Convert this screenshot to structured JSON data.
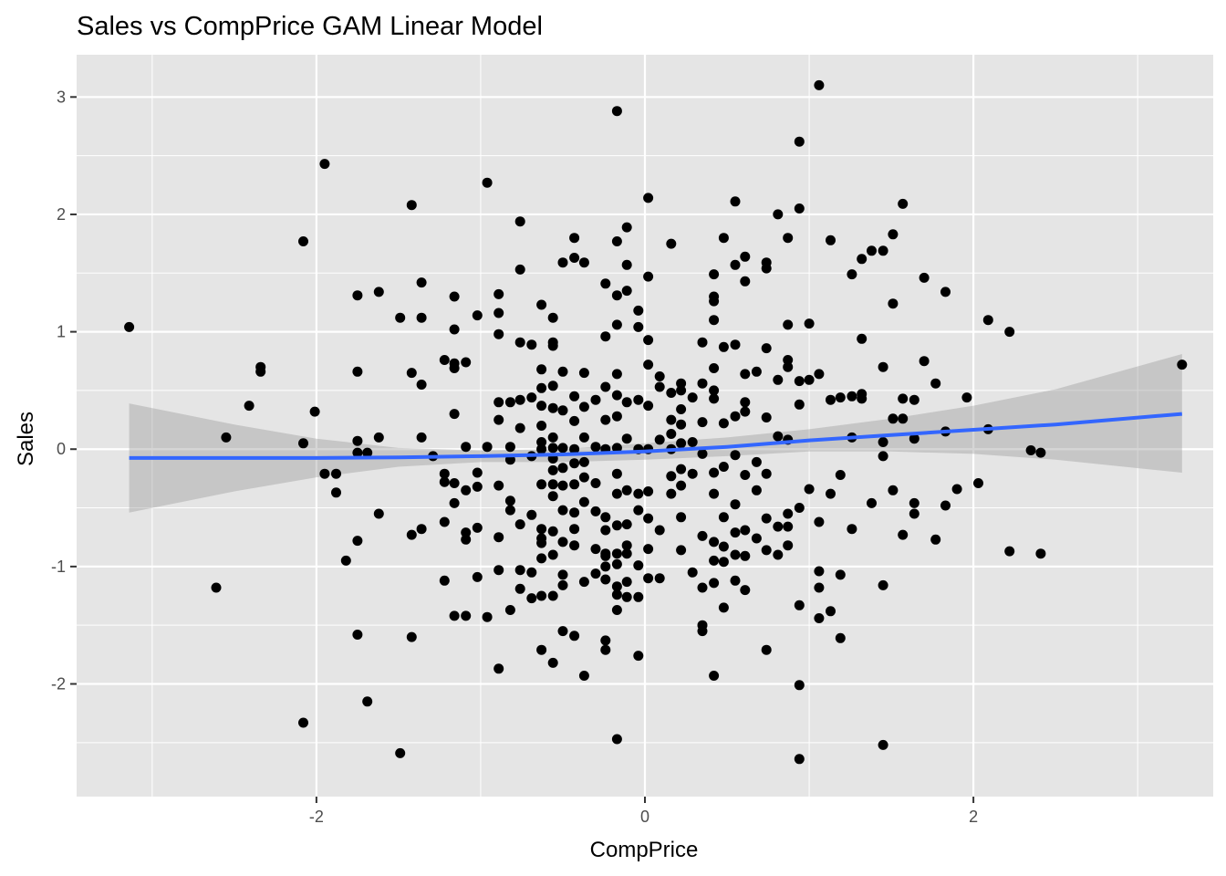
{
  "chart_data": {
    "type": "scatter",
    "title": "Sales vs CompPrice GAM Linear Model",
    "xlabel": "CompPrice",
    "ylabel": "Sales",
    "xlim": [
      -3.46,
      3.46
    ],
    "ylim": [
      -2.96,
      3.36
    ],
    "x_ticks": [
      -2,
      0,
      2
    ],
    "x_tick_labels": [
      "-2",
      "0",
      "2"
    ],
    "y_ticks": [
      -2,
      -1,
      0,
      1,
      2,
      3
    ],
    "y_tick_labels": [
      "-2",
      "-1",
      "0",
      "1",
      "2",
      "3"
    ],
    "grid": true,
    "legend": "none",
    "colors": {
      "panel_background": "#e5e5e5",
      "grid": "#ffffff",
      "points": "#000000",
      "fit_line": "#3366ff",
      "confidence_band": "#999999"
    },
    "points": [
      [
        -3.14,
        1.04
      ],
      [
        -2.55,
        0.1
      ],
      [
        -2.61,
        -1.18
      ],
      [
        -2.41,
        0.37
      ],
      [
        -2.34,
        0.7
      ],
      [
        -2.34,
        0.66
      ],
      [
        -2.08,
        1.77
      ],
      [
        -2.08,
        0.05
      ],
      [
        -2.08,
        -2.33
      ],
      [
        -2.01,
        0.32
      ],
      [
        -1.95,
        2.43
      ],
      [
        -1.95,
        -0.21
      ],
      [
        -1.88,
        -0.21
      ],
      [
        -1.88,
        -0.37
      ],
      [
        -1.82,
        -0.95
      ],
      [
        -1.75,
        1.31
      ],
      [
        -1.75,
        0.66
      ],
      [
        -1.75,
        0.07
      ],
      [
        -1.75,
        -0.03
      ],
      [
        -1.75,
        -0.78
      ],
      [
        -1.75,
        -1.58
      ],
      [
        -1.69,
        -0.03
      ],
      [
        -1.69,
        -2.15
      ],
      [
        -1.62,
        1.34
      ],
      [
        -1.62,
        0.1
      ],
      [
        -1.62,
        -0.55
      ],
      [
        -1.49,
        1.12
      ],
      [
        -1.49,
        -2.59
      ],
      [
        -1.42,
        2.08
      ],
      [
        -1.42,
        0.65
      ],
      [
        -1.42,
        -0.73
      ],
      [
        -1.42,
        -1.6
      ],
      [
        -1.36,
        1.42
      ],
      [
        -1.36,
        1.12
      ],
      [
        -1.36,
        0.55
      ],
      [
        -1.36,
        0.1
      ],
      [
        -1.36,
        -0.68
      ],
      [
        -1.29,
        -0.06
      ],
      [
        -1.22,
        0.76
      ],
      [
        -1.22,
        -0.21
      ],
      [
        -1.22,
        -0.28
      ],
      [
        -1.22,
        -0.62
      ],
      [
        -1.22,
        -1.12
      ],
      [
        -1.16,
        1.3
      ],
      [
        -1.16,
        1.02
      ],
      [
        -1.16,
        0.73
      ],
      [
        -1.16,
        0.69
      ],
      [
        -1.16,
        0.3
      ],
      [
        -1.16,
        -0.29
      ],
      [
        -1.16,
        -0.46
      ],
      [
        -1.16,
        -1.42
      ],
      [
        -1.09,
        0.74
      ],
      [
        -1.09,
        0.02
      ],
      [
        -1.09,
        -0.35
      ],
      [
        -1.09,
        -0.71
      ],
      [
        -1.09,
        -0.77
      ],
      [
        -1.09,
        -1.42
      ],
      [
        -1.02,
        1.14
      ],
      [
        -1.02,
        -0.2
      ],
      [
        -1.02,
        -0.32
      ],
      [
        -1.02,
        -0.67
      ],
      [
        -1.02,
        -1.09
      ],
      [
        -0.96,
        2.27
      ],
      [
        -0.96,
        0.02
      ],
      [
        -0.96,
        -1.43
      ],
      [
        -0.89,
        1.32
      ],
      [
        -0.89,
        1.16
      ],
      [
        -0.89,
        0.98
      ],
      [
        -0.89,
        0.4
      ],
      [
        -0.89,
        0.25
      ],
      [
        -0.89,
        -0.31
      ],
      [
        -0.89,
        -0.75
      ],
      [
        -0.89,
        -1.03
      ],
      [
        -0.89,
        -1.87
      ],
      [
        -0.82,
        0.4
      ],
      [
        -0.82,
        0.02
      ],
      [
        -0.82,
        -0.09
      ],
      [
        -0.82,
        -0.44
      ],
      [
        -0.82,
        -0.52
      ],
      [
        -0.82,
        -1.37
      ],
      [
        -0.76,
        1.94
      ],
      [
        -0.76,
        1.53
      ],
      [
        -0.76,
        0.91
      ],
      [
        -0.76,
        0.42
      ],
      [
        -0.76,
        0.18
      ],
      [
        -0.76,
        -0.64
      ],
      [
        -0.76,
        -1.03
      ],
      [
        -0.76,
        -1.19
      ],
      [
        -0.69,
        0.89
      ],
      [
        -0.69,
        0.44
      ],
      [
        -0.69,
        -0.06
      ],
      [
        -0.69,
        -0.56
      ],
      [
        -0.69,
        -1.05
      ],
      [
        -0.69,
        -1.27
      ],
      [
        -0.63,
        1.23
      ],
      [
        -0.63,
        0.68
      ],
      [
        -0.63,
        0.52
      ],
      [
        -0.63,
        0.37
      ],
      [
        -0.63,
        0.2
      ],
      [
        -0.63,
        0.06
      ],
      [
        -0.63,
        0.0
      ],
      [
        -0.63,
        -0.3
      ],
      [
        -0.63,
        -0.68
      ],
      [
        -0.63,
        -0.76
      ],
      [
        -0.63,
        -0.8
      ],
      [
        -0.63,
        -0.93
      ],
      [
        -0.63,
        -1.25
      ],
      [
        -0.63,
        -1.71
      ],
      [
        -0.56,
        1.12
      ],
      [
        -0.56,
        0.91
      ],
      [
        -0.56,
        0.88
      ],
      [
        -0.56,
        0.54
      ],
      [
        -0.56,
        0.35
      ],
      [
        -0.56,
        0.1
      ],
      [
        -0.56,
        0.01
      ],
      [
        -0.56,
        -0.08
      ],
      [
        -0.56,
        -0.18
      ],
      [
        -0.56,
        -0.3
      ],
      [
        -0.56,
        -0.4
      ],
      [
        -0.56,
        -0.7
      ],
      [
        -0.56,
        -0.9
      ],
      [
        -0.56,
        -1.25
      ],
      [
        -0.56,
        -1.82
      ],
      [
        -0.5,
        1.59
      ],
      [
        -0.5,
        0.66
      ],
      [
        -0.5,
        0.33
      ],
      [
        -0.5,
        0.01
      ],
      [
        -0.5,
        -0.16
      ],
      [
        -0.5,
        -0.31
      ],
      [
        -0.5,
        -0.52
      ],
      [
        -0.5,
        -0.79
      ],
      [
        -0.5,
        -1.07
      ],
      [
        -0.5,
        -1.16
      ],
      [
        -0.5,
        -1.55
      ],
      [
        -0.43,
        1.8
      ],
      [
        -0.43,
        1.63
      ],
      [
        -0.43,
        0.45
      ],
      [
        -0.43,
        0.24
      ],
      [
        -0.43,
        0.0
      ],
      [
        -0.43,
        -0.12
      ],
      [
        -0.43,
        -0.3
      ],
      [
        -0.43,
        -0.54
      ],
      [
        -0.43,
        -0.68
      ],
      [
        -0.43,
        -0.82
      ],
      [
        -0.43,
        -1.59
      ],
      [
        -0.37,
        1.59
      ],
      [
        -0.37,
        0.65
      ],
      [
        -0.37,
        0.36
      ],
      [
        -0.37,
        0.1
      ],
      [
        -0.37,
        -0.11
      ],
      [
        -0.37,
        -0.24
      ],
      [
        -0.37,
        -0.45
      ],
      [
        -0.37,
        -1.13
      ],
      [
        -0.37,
        -1.93
      ],
      [
        -0.3,
        0.42
      ],
      [
        -0.3,
        0.02
      ],
      [
        -0.3,
        -0.29
      ],
      [
        -0.3,
        -0.53
      ],
      [
        -0.3,
        -0.85
      ],
      [
        -0.3,
        -1.06
      ],
      [
        -0.24,
        1.41
      ],
      [
        -0.24,
        0.96
      ],
      [
        -0.24,
        0.53
      ],
      [
        -0.24,
        0.25
      ],
      [
        -0.24,
        0.0
      ],
      [
        -0.24,
        -0.58
      ],
      [
        -0.24,
        -0.69
      ],
      [
        -0.24,
        -0.89
      ],
      [
        -0.24,
        -0.91
      ],
      [
        -0.24,
        -1.0
      ],
      [
        -0.24,
        -1.11
      ],
      [
        -0.24,
        -1.63
      ],
      [
        -0.24,
        -1.71
      ],
      [
        -0.17,
        2.88
      ],
      [
        -0.17,
        1.77
      ],
      [
        -0.17,
        1.31
      ],
      [
        -0.17,
        1.06
      ],
      [
        -0.17,
        0.64
      ],
      [
        -0.17,
        0.46
      ],
      [
        -0.17,
        0.28
      ],
      [
        -0.17,
        0.01
      ],
      [
        -0.17,
        -0.21
      ],
      [
        -0.17,
        -0.38
      ],
      [
        -0.17,
        -0.65
      ],
      [
        -0.17,
        -0.89
      ],
      [
        -0.17,
        -0.98
      ],
      [
        -0.17,
        -1.17
      ],
      [
        -0.17,
        -1.24
      ],
      [
        -0.17,
        -1.37
      ],
      [
        -0.17,
        -2.47
      ],
      [
        -0.11,
        1.89
      ],
      [
        -0.11,
        1.57
      ],
      [
        -0.11,
        1.35
      ],
      [
        -0.11,
        0.4
      ],
      [
        -0.11,
        0.09
      ],
      [
        -0.11,
        -0.35
      ],
      [
        -0.11,
        -0.64
      ],
      [
        -0.11,
        -0.82
      ],
      [
        -0.11,
        -0.89
      ],
      [
        -0.11,
        -1.13
      ],
      [
        -0.11,
        -1.26
      ],
      [
        -0.04,
        1.18
      ],
      [
        -0.04,
        1.04
      ],
      [
        -0.04,
        0.42
      ],
      [
        -0.04,
        0.0
      ],
      [
        -0.04,
        -0.38
      ],
      [
        -0.04,
        -0.52
      ],
      [
        -0.04,
        -0.99
      ],
      [
        -0.04,
        -1.26
      ],
      [
        -0.04,
        -1.76
      ],
      [
        0.02,
        2.14
      ],
      [
        0.02,
        1.47
      ],
      [
        0.02,
        0.93
      ],
      [
        0.02,
        0.72
      ],
      [
        0.02,
        0.37
      ],
      [
        0.02,
        0.0
      ],
      [
        0.02,
        -0.36
      ],
      [
        0.02,
        -0.59
      ],
      [
        0.02,
        -0.85
      ],
      [
        0.02,
        -1.1
      ],
      [
        0.09,
        0.62
      ],
      [
        0.09,
        0.53
      ],
      [
        0.09,
        0.08
      ],
      [
        0.09,
        -0.69
      ],
      [
        0.09,
        -1.1
      ],
      [
        0.16,
        1.75
      ],
      [
        0.16,
        0.48
      ],
      [
        0.16,
        0.25
      ],
      [
        0.16,
        0.13
      ],
      [
        0.16,
        0.0
      ],
      [
        0.16,
        -0.23
      ],
      [
        0.16,
        -0.38
      ],
      [
        0.22,
        0.56
      ],
      [
        0.22,
        0.5
      ],
      [
        0.22,
        0.34
      ],
      [
        0.22,
        0.21
      ],
      [
        0.22,
        0.05
      ],
      [
        0.22,
        -0.17
      ],
      [
        0.22,
        -0.31
      ],
      [
        0.22,
        -0.58
      ],
      [
        0.22,
        -0.86
      ],
      [
        0.29,
        0.44
      ],
      [
        0.29,
        0.06
      ],
      [
        0.29,
        -0.21
      ],
      [
        0.29,
        -1.05
      ],
      [
        0.35,
        0.91
      ],
      [
        0.35,
        0.56
      ],
      [
        0.35,
        0.23
      ],
      [
        0.35,
        -0.04
      ],
      [
        0.35,
        -0.74
      ],
      [
        0.35,
        -1.18
      ],
      [
        0.35,
        -1.5
      ],
      [
        0.35,
        -1.55
      ],
      [
        0.42,
        1.49
      ],
      [
        0.42,
        1.3
      ],
      [
        0.42,
        1.26
      ],
      [
        0.42,
        1.1
      ],
      [
        0.42,
        0.69
      ],
      [
        0.42,
        0.5
      ],
      [
        0.42,
        0.43
      ],
      [
        0.42,
        -0.2
      ],
      [
        0.42,
        -0.38
      ],
      [
        0.42,
        -0.79
      ],
      [
        0.42,
        -0.95
      ],
      [
        0.42,
        -1.14
      ],
      [
        0.42,
        -1.93
      ],
      [
        0.48,
        1.8
      ],
      [
        0.48,
        0.87
      ],
      [
        0.48,
        0.22
      ],
      [
        0.48,
        -0.15
      ],
      [
        0.48,
        -0.58
      ],
      [
        0.48,
        -0.83
      ],
      [
        0.48,
        -0.96
      ],
      [
        0.48,
        -1.35
      ],
      [
        0.55,
        2.11
      ],
      [
        0.55,
        1.57
      ],
      [
        0.55,
        0.89
      ],
      [
        0.55,
        0.28
      ],
      [
        0.55,
        -0.05
      ],
      [
        0.55,
        -0.47
      ],
      [
        0.55,
        -0.71
      ],
      [
        0.55,
        -0.9
      ],
      [
        0.55,
        -1.12
      ],
      [
        0.61,
        1.64
      ],
      [
        0.61,
        1.43
      ],
      [
        0.61,
        0.64
      ],
      [
        0.61,
        0.4
      ],
      [
        0.61,
        0.32
      ],
      [
        0.61,
        -0.22
      ],
      [
        0.61,
        -0.69
      ],
      [
        0.61,
        -0.91
      ],
      [
        0.61,
        -1.2
      ],
      [
        0.68,
        0.66
      ],
      [
        0.68,
        -0.11
      ],
      [
        0.68,
        -0.35
      ],
      [
        0.68,
        -0.76
      ],
      [
        0.74,
        1.59
      ],
      [
        0.74,
        1.54
      ],
      [
        0.74,
        0.86
      ],
      [
        0.74,
        0.27
      ],
      [
        0.74,
        -0.21
      ],
      [
        0.74,
        -0.59
      ],
      [
        0.74,
        -0.86
      ],
      [
        0.74,
        -1.71
      ],
      [
        0.81,
        2.0
      ],
      [
        0.81,
        0.59
      ],
      [
        0.81,
        0.11
      ],
      [
        0.81,
        -0.66
      ],
      [
        0.81,
        -0.9
      ],
      [
        0.87,
        1.8
      ],
      [
        0.87,
        1.06
      ],
      [
        0.87,
        0.76
      ],
      [
        0.87,
        0.7
      ],
      [
        0.87,
        0.08
      ],
      [
        0.87,
        -0.55
      ],
      [
        0.87,
        -0.66
      ],
      [
        0.87,
        -0.82
      ],
      [
        0.94,
        2.62
      ],
      [
        0.94,
        2.05
      ],
      [
        0.94,
        0.58
      ],
      [
        0.94,
        0.38
      ],
      [
        0.94,
        -0.5
      ],
      [
        0.94,
        -1.33
      ],
      [
        0.94,
        -2.01
      ],
      [
        0.94,
        -2.64
      ],
      [
        1.0,
        1.07
      ],
      [
        1.0,
        0.59
      ],
      [
        1.0,
        -0.34
      ],
      [
        1.06,
        3.1
      ],
      [
        1.06,
        0.64
      ],
      [
        1.06,
        -0.62
      ],
      [
        1.06,
        -1.04
      ],
      [
        1.06,
        -1.18
      ],
      [
        1.06,
        -1.44
      ],
      [
        1.13,
        1.78
      ],
      [
        1.13,
        0.42
      ],
      [
        1.13,
        -0.38
      ],
      [
        1.13,
        -1.38
      ],
      [
        1.19,
        0.44
      ],
      [
        1.19,
        -0.22
      ],
      [
        1.19,
        -1.07
      ],
      [
        1.19,
        -1.61
      ],
      [
        1.26,
        1.49
      ],
      [
        1.26,
        0.45
      ],
      [
        1.26,
        0.1
      ],
      [
        1.26,
        -0.68
      ],
      [
        1.32,
        1.62
      ],
      [
        1.32,
        0.94
      ],
      [
        1.32,
        0.47
      ],
      [
        1.32,
        0.43
      ],
      [
        1.38,
        1.69
      ],
      [
        1.38,
        -0.46
      ],
      [
        1.45,
        1.69
      ],
      [
        1.45,
        0.7
      ],
      [
        1.45,
        0.06
      ],
      [
        1.45,
        -0.06
      ],
      [
        1.45,
        -1.16
      ],
      [
        1.45,
        -2.52
      ],
      [
        1.51,
        1.83
      ],
      [
        1.51,
        1.24
      ],
      [
        1.51,
        0.26
      ],
      [
        1.51,
        -0.35
      ],
      [
        1.57,
        2.09
      ],
      [
        1.57,
        0.43
      ],
      [
        1.57,
        0.26
      ],
      [
        1.57,
        -0.73
      ],
      [
        1.64,
        0.42
      ],
      [
        1.64,
        0.09
      ],
      [
        1.64,
        -0.46
      ],
      [
        1.64,
        -0.55
      ],
      [
        1.7,
        1.46
      ],
      [
        1.7,
        0.75
      ],
      [
        1.77,
        0.56
      ],
      [
        1.77,
        -0.77
      ],
      [
        1.83,
        1.34
      ],
      [
        1.83,
        0.15
      ],
      [
        1.83,
        -0.48
      ],
      [
        1.9,
        -0.34
      ],
      [
        1.96,
        0.44
      ],
      [
        2.03,
        -0.29
      ],
      [
        2.09,
        1.1
      ],
      [
        2.09,
        0.17
      ],
      [
        2.22,
        1.0
      ],
      [
        2.22,
        -0.87
      ],
      [
        2.35,
        -0.01
      ],
      [
        2.41,
        -0.03
      ],
      [
        2.41,
        -0.89
      ],
      [
        3.27,
        0.72
      ]
    ],
    "fit": {
      "x": [
        -3.14,
        -2.5,
        -2.0,
        -1.5,
        -1.0,
        -0.5,
        0.0,
        0.5,
        1.0,
        1.5,
        2.0,
        2.5,
        3.27
      ],
      "y": [
        -0.075,
        -0.075,
        -0.075,
        -0.07,
        -0.06,
        -0.045,
        -0.02,
        0.02,
        0.075,
        0.12,
        0.165,
        0.21,
        0.3
      ],
      "lower": [
        -0.54,
        -0.36,
        -0.24,
        -0.15,
        -0.11,
        -0.11,
        -0.09,
        -0.06,
        -0.02,
        -0.02,
        -0.04,
        -0.09,
        -0.2
      ],
      "upper": [
        0.39,
        0.21,
        0.09,
        0.01,
        -0.01,
        0.0,
        0.05,
        0.1,
        0.17,
        0.26,
        0.37,
        0.51,
        0.81
      ]
    }
  }
}
